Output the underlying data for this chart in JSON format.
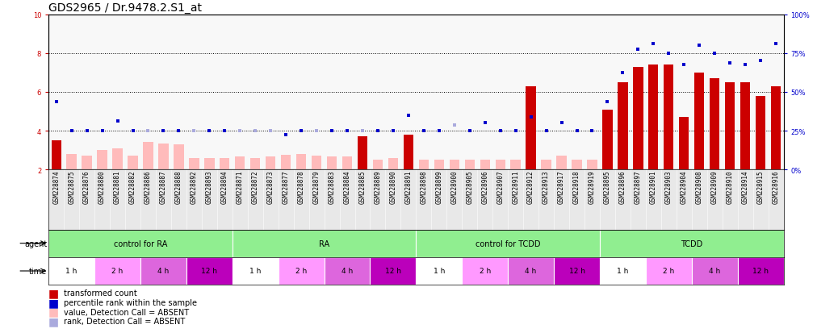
{
  "title": "GDS2965 / Dr.9478.2.S1_at",
  "samples": [
    "GSM228874",
    "GSM228875",
    "GSM228876",
    "GSM228880",
    "GSM228881",
    "GSM228882",
    "GSM228886",
    "GSM228887",
    "GSM228888",
    "GSM228892",
    "GSM228893",
    "GSM228894",
    "GSM228871",
    "GSM228872",
    "GSM228873",
    "GSM228877",
    "GSM228878",
    "GSM228879",
    "GSM228883",
    "GSM228884",
    "GSM228885",
    "GSM228889",
    "GSM228890",
    "GSM228891",
    "GSM228898",
    "GSM228899",
    "GSM228900",
    "GSM228905",
    "GSM228906",
    "GSM228907",
    "GSM228911",
    "GSM228912",
    "GSM228913",
    "GSM228917",
    "GSM228918",
    "GSM228919",
    "GSM228895",
    "GSM228896",
    "GSM228897",
    "GSM228901",
    "GSM228903",
    "GSM228904",
    "GSM228908",
    "GSM228909",
    "GSM228910",
    "GSM228914",
    "GSM228915",
    "GSM228916"
  ],
  "bar_values": [
    3.5,
    2.8,
    2.7,
    3.0,
    3.1,
    2.7,
    3.4,
    3.35,
    3.3,
    2.6,
    2.6,
    2.6,
    2.65,
    2.6,
    2.65,
    2.75,
    2.8,
    2.7,
    2.65,
    2.65,
    3.7,
    2.5,
    2.6,
    3.8,
    2.5,
    2.5,
    2.5,
    2.5,
    2.5,
    2.5,
    2.5,
    6.3,
    2.5,
    2.7,
    2.5,
    2.5,
    5.1,
    6.5,
    7.3,
    7.4,
    7.4,
    4.7,
    7.0,
    6.7,
    6.5,
    6.5,
    5.8,
    6.3
  ],
  "bar_absent": [
    false,
    true,
    true,
    true,
    true,
    true,
    true,
    true,
    true,
    true,
    true,
    true,
    true,
    true,
    true,
    true,
    true,
    true,
    true,
    true,
    false,
    true,
    true,
    false,
    true,
    true,
    true,
    true,
    true,
    true,
    true,
    false,
    true,
    true,
    true,
    true,
    false,
    false,
    false,
    false,
    false,
    false,
    false,
    false,
    false,
    false,
    false,
    false
  ],
  "rank_values": [
    5.5,
    4.0,
    4.0,
    4.0,
    4.5,
    4.0,
    4.0,
    4.0,
    4.0,
    4.0,
    4.0,
    4.0,
    4.0,
    4.0,
    4.0,
    3.8,
    4.0,
    4.0,
    4.0,
    4.0,
    4.0,
    4.0,
    4.0,
    4.8,
    4.0,
    4.0,
    4.3,
    4.0,
    4.4,
    4.0,
    4.0,
    4.7,
    4.0,
    4.4,
    4.0,
    4.0,
    5.5,
    7.0,
    8.2,
    8.5,
    8.0,
    7.4,
    8.4,
    8.0,
    7.5,
    7.4,
    7.6,
    8.5
  ],
  "rank_absent": [
    false,
    false,
    false,
    false,
    false,
    false,
    true,
    false,
    false,
    true,
    false,
    false,
    true,
    true,
    true,
    false,
    false,
    true,
    false,
    false,
    true,
    false,
    false,
    false,
    false,
    false,
    true,
    false,
    false,
    false,
    false,
    false,
    false,
    false,
    false,
    false,
    false,
    false,
    false,
    false,
    false,
    false,
    false,
    false,
    false,
    false,
    false,
    false
  ],
  "agents": [
    {
      "label": "control for RA",
      "start": 0,
      "end": 12
    },
    {
      "label": "RA",
      "start": 12,
      "end": 24
    },
    {
      "label": "control for TCDD",
      "start": 24,
      "end": 36
    },
    {
      "label": "TCDD",
      "start": 36,
      "end": 48
    }
  ],
  "time_groups": [
    {
      "label": "1 h",
      "start": 0,
      "end": 3
    },
    {
      "label": "2 h",
      "start": 3,
      "end": 6
    },
    {
      "label": "4 h",
      "start": 6,
      "end": 9
    },
    {
      "label": "12 h",
      "start": 9,
      "end": 12
    },
    {
      "label": "1 h",
      "start": 12,
      "end": 15
    },
    {
      "label": "2 h",
      "start": 15,
      "end": 18
    },
    {
      "label": "4 h",
      "start": 18,
      "end": 21
    },
    {
      "label": "12 h",
      "start": 21,
      "end": 24
    },
    {
      "label": "1 h",
      "start": 24,
      "end": 27
    },
    {
      "label": "2 h",
      "start": 27,
      "end": 30
    },
    {
      "label": "4 h",
      "start": 30,
      "end": 33
    },
    {
      "label": "12 h",
      "start": 33,
      "end": 36
    },
    {
      "label": "1 h",
      "start": 36,
      "end": 39
    },
    {
      "label": "2 h",
      "start": 39,
      "end": 42
    },
    {
      "label": "4 h",
      "start": 42,
      "end": 45
    },
    {
      "label": "12 h",
      "start": 45,
      "end": 48
    }
  ],
  "time_colors": {
    "1 h": "#ffffff",
    "2 h": "#ff99ff",
    "4 h": "#dd66dd",
    "12 h": "#bb00bb"
  },
  "agent_color": "#90EE90",
  "ylim_left": [
    2,
    10
  ],
  "ylim_right": [
    0,
    100
  ],
  "yticks_left": [
    2,
    4,
    6,
    8,
    10
  ],
  "yticks_right": [
    0,
    25,
    50,
    75,
    100
  ],
  "bar_color_present": "#cc0000",
  "bar_color_absent": "#ffbbbb",
  "rank_color_present": "#0000cc",
  "rank_color_absent": "#aaaadd",
  "title_fontsize": 10,
  "tick_fontsize": 6,
  "label_fontsize": 7,
  "legend_fontsize": 7,
  "row_label_fontsize": 7
}
